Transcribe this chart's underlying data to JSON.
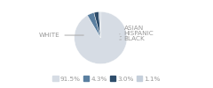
{
  "labels": [
    "WHITE",
    "ASIAN",
    "HISPANIC",
    "BLACK"
  ],
  "values": [
    91.5,
    4.3,
    3.0,
    1.1
  ],
  "colors": [
    "#d6dce4",
    "#5a7fa0",
    "#2e4d6b",
    "#c5cfdb"
  ],
  "legend_labels": [
    "91.5%",
    "4.3%",
    "3.0%",
    "1.1%"
  ],
  "background_color": "#ffffff",
  "text_color": "#999999",
  "font_size": 5.2,
  "startangle": 90
}
